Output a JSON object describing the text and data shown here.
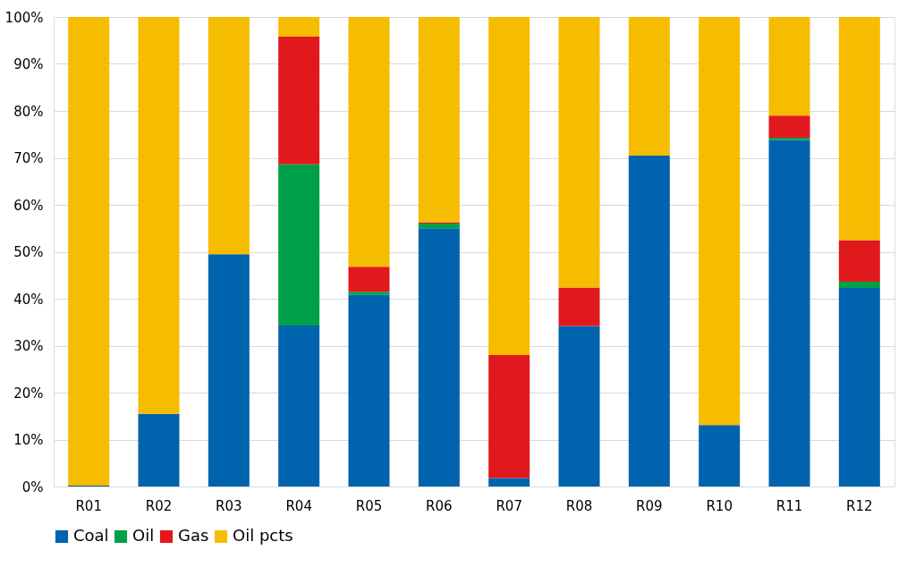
{
  "chart_data": {
    "type": "bar",
    "stacked": true,
    "categories": [
      "R01",
      "R02",
      "R03",
      "R04",
      "R05",
      "R06",
      "R07",
      "R08",
      "R09",
      "R10",
      "R11",
      "R12"
    ],
    "series": [
      {
        "name": "Coal",
        "color": "#0063ae",
        "values": [
          0.2,
          15.5,
          49.5,
          34.3,
          40.8,
          55.0,
          1.8,
          34.2,
          70.5,
          13.1,
          73.8,
          42.3
        ]
      },
      {
        "name": "Oil",
        "color": "#00a04a",
        "values": [
          0,
          0,
          0,
          34.3,
          0.7,
          1.0,
          0,
          0,
          0,
          0,
          0.5,
          1.3
        ]
      },
      {
        "name": "Gas",
        "color": "#e2191c",
        "values": [
          0,
          0,
          0,
          27.2,
          5.3,
          0.3,
          26.2,
          8.2,
          0,
          0,
          4.7,
          8.9
        ]
      },
      {
        "name": "Oil pcts",
        "color": "#f6bc00",
        "values": [
          99.8,
          84.5,
          50.5,
          4.2,
          53.2,
          43.7,
          72.0,
          57.6,
          29.5,
          86.9,
          21.0,
          47.5
        ]
      }
    ],
    "ylim": [
      0,
      100
    ],
    "yticks": [
      {
        "value": 0,
        "label": "0%"
      },
      {
        "value": 10,
        "label": "10%"
      },
      {
        "value": 20,
        "label": "20%"
      },
      {
        "value": 30,
        "label": "30%"
      },
      {
        "value": 40,
        "label": "40%"
      },
      {
        "value": 50,
        "label": "50%"
      },
      {
        "value": 60,
        "label": "60%"
      },
      {
        "value": 70,
        "label": "70%"
      },
      {
        "value": 80,
        "label": "80%"
      },
      {
        "value": 90,
        "label": "90%"
      },
      {
        "value": 100,
        "label": "100%"
      }
    ],
    "grid": "y",
    "legend": "bottom"
  }
}
